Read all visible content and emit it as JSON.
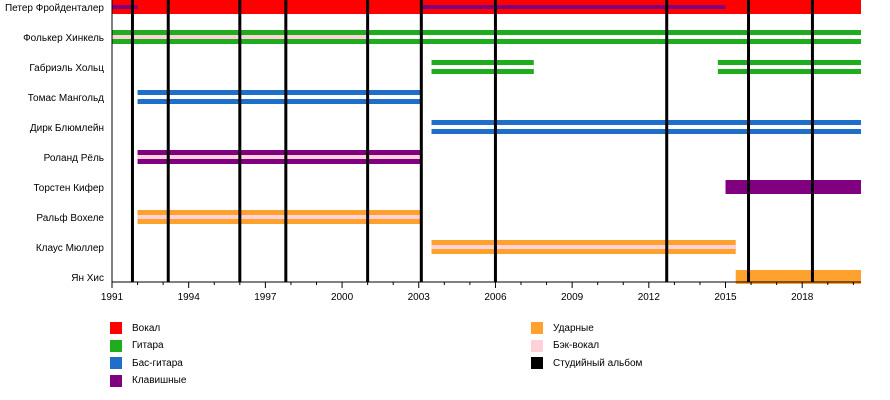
{
  "chart_data": {
    "type": "timeline",
    "title": "",
    "xlabel": "",
    "ylabel": "",
    "x_range": [
      1991,
      2020.3
    ],
    "x_ticks": [
      1991,
      1994,
      1997,
      2000,
      2003,
      2006,
      2009,
      2012,
      2015,
      2018
    ],
    "members": [
      {
        "name": "Петер Фройденталер",
        "bars": [
          {
            "start": 1991,
            "end": 2020.3,
            "role": "vocals"
          },
          {
            "start": 1991,
            "end": 1992,
            "role": "keyboards",
            "style": "inner"
          },
          {
            "start": 2003.1,
            "end": 2015,
            "role": "keyboards",
            "style": "inner"
          }
        ]
      },
      {
        "name": "Фолькер Хинкель",
        "bars": [
          {
            "start": 1991,
            "end": 2001,
            "role": "guitar",
            "style": "backing"
          },
          {
            "start": 2001,
            "end": 2020.3,
            "role": "guitar"
          }
        ]
      },
      {
        "name": "Габриэль Хольц",
        "bars": [
          {
            "start": 2003.5,
            "end": 2007.5,
            "role": "guitar"
          },
          {
            "start": 2014.7,
            "end": 2020.3,
            "role": "guitar"
          }
        ]
      },
      {
        "name": "Томас Мангольд",
        "bars": [
          {
            "start": 1992,
            "end": 2003.1,
            "role": "bass"
          }
        ]
      },
      {
        "name": "Дирк Блюмлейн",
        "bars": [
          {
            "start": 2003.5,
            "end": 2020.3,
            "role": "bass"
          }
        ]
      },
      {
        "name": "Роланд Рёль",
        "bars": [
          {
            "start": 1992,
            "end": 2003.1,
            "role": "keyboards",
            "style": "backing"
          }
        ]
      },
      {
        "name": "Торстен Кифер",
        "bars": [
          {
            "start": 2015,
            "end": 2020.3,
            "role": "keyboards"
          }
        ]
      },
      {
        "name": "Ральф Вохеле",
        "bars": [
          {
            "start": 1992,
            "end": 2003.1,
            "role": "drums",
            "style": "backing"
          }
        ]
      },
      {
        "name": "Клаус Мюллер",
        "bars": [
          {
            "start": 2003.5,
            "end": 2015.4,
            "role": "drums",
            "style": "backing"
          }
        ]
      },
      {
        "name": "Ян Хис",
        "bars": [
          {
            "start": 2015.4,
            "end": 2020.3,
            "role": "drums"
          }
        ]
      }
    ],
    "albums": [
      1991.8,
      1993.2,
      1996,
      1997.8,
      2001,
      2003.1,
      2006,
      2012.7,
      2015.9,
      2018.4
    ],
    "colors": {
      "vocals": "#ff0000",
      "guitar": "#1fad1f",
      "bass": "#1f6fc8",
      "keyboards": "#800080",
      "drums": "#ffa12c",
      "backing": "#ffd1d8",
      "album": "#000000"
    },
    "legend": {
      "placement": "bottom",
      "left": [
        {
          "label": "Вокал",
          "color": "#ff0000"
        },
        {
          "label": "Гитара",
          "color": "#1fad1f"
        },
        {
          "label": "Бас-гитара",
          "color": "#1f6fc8"
        },
        {
          "label": "Клавишные",
          "color": "#800080"
        }
      ],
      "right": [
        {
          "label": "Ударные",
          "color": "#ffa12c"
        },
        {
          "label": "Бэк-вокал",
          "color": "#ffd1d8"
        },
        {
          "label": "Студийный альбом",
          "color": "#000000"
        }
      ]
    }
  }
}
